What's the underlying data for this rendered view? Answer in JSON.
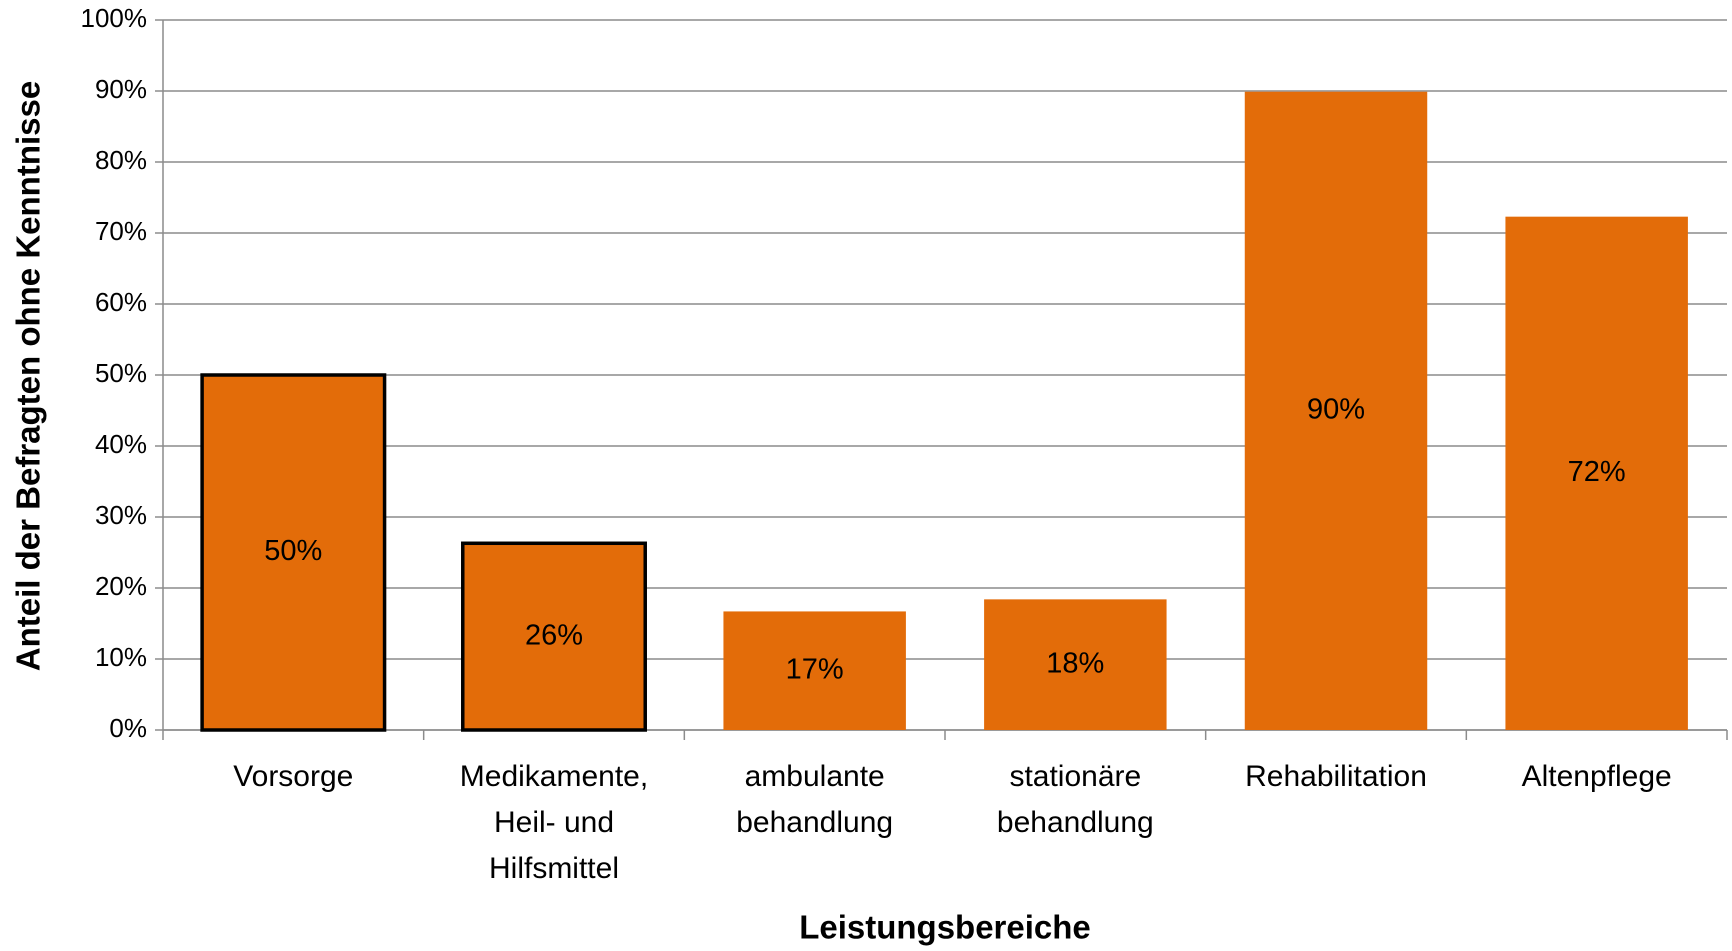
{
  "chart_data": {
    "type": "bar",
    "categories": [
      [
        "Vorsorge"
      ],
      [
        "Medikamente,",
        "Heil- und",
        "Hilfsmittel"
      ],
      [
        "ambulante",
        "behandlung"
      ],
      [
        "stationäre",
        "behandlung"
      ],
      [
        "Rehabilitation"
      ],
      [
        "Altenpflege"
      ]
    ],
    "values": [
      50,
      26.3,
      16.7,
      18.4,
      89.9,
      72.3
    ],
    "value_labels": [
      "50%",
      "26%",
      "17%",
      "18%",
      "90%",
      "72%"
    ],
    "color": "#e36c09",
    "outlined": [
      true,
      true,
      false,
      false,
      false,
      false
    ],
    "outline_color": "#000000",
    "x_label": "Leistungsbereiche",
    "y_label": "Anteil der Befragten ohne Kenntnisse",
    "ylim": [
      0,
      100
    ],
    "yticks": [
      {
        "value": 0,
        "label": "0%"
      },
      {
        "value": 10,
        "label": "10%"
      },
      {
        "value": 20,
        "label": "20%"
      },
      {
        "value": 30,
        "label": "30%"
      },
      {
        "value": 40,
        "label": "40%"
      },
      {
        "value": 50,
        "label": "50%"
      },
      {
        "value": 60,
        "label": "60%"
      },
      {
        "value": 70,
        "label": "70%"
      },
      {
        "value": 80,
        "label": "80%"
      },
      {
        "value": 90,
        "label": "90%"
      },
      {
        "value": 100,
        "label": "100%"
      }
    ],
    "grid": true
  }
}
